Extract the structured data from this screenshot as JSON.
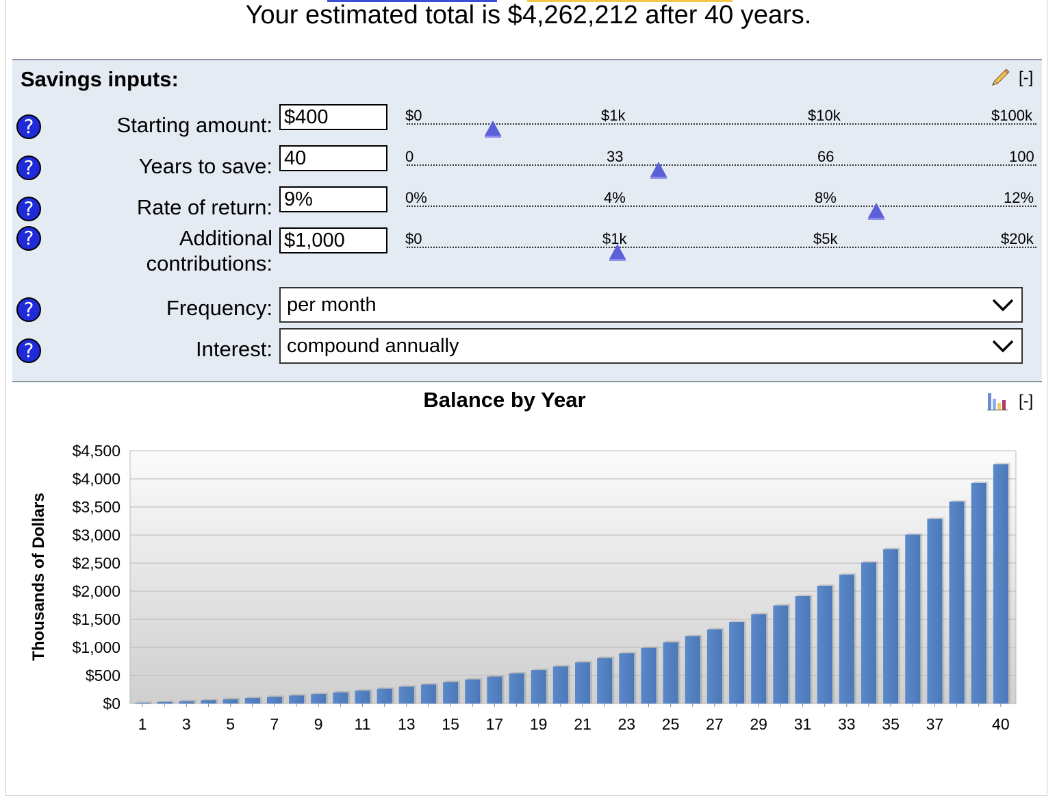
{
  "headline": "Your estimated total is $4,262,212 after 40 years.",
  "inputs_panel": {
    "title": "Savings inputs:",
    "collapse_label": "[-]",
    "fields": {
      "starting_amount": {
        "label": "Starting amount:",
        "value": "$400",
        "ticks": [
          "$0",
          "$1k",
          "$10k",
          "$100k"
        ],
        "slider_position": 0.137
      },
      "years": {
        "label": "Years to save:",
        "value": "40",
        "ticks": [
          "0",
          "33",
          "66",
          "100"
        ],
        "slider_position": 0.4
      },
      "rate": {
        "label": "Rate of return:",
        "value": "9%",
        "ticks": [
          "0%",
          "4%",
          "8%",
          "12%"
        ],
        "slider_position": 0.75
      },
      "contributions": {
        "label_line1": "Additional",
        "label_line2": "contributions:",
        "value": "$1,000",
        "ticks": [
          "$0",
          "$1k",
          "$5k",
          "$20k"
        ],
        "slider_position": 0.333
      },
      "frequency": {
        "label": "Frequency:",
        "value": "per month"
      },
      "interest": {
        "label": "Interest:",
        "value": "compound annually"
      }
    },
    "help_glyph": "?"
  },
  "chart_panel": {
    "collapse_label": "[-]"
  },
  "colors": {
    "accent": "#1f2bd9",
    "bar": "#4f7fbe",
    "slider_thumb": "#5b60d8",
    "panel_bg": "#e5ebf3"
  },
  "chart_data": {
    "type": "bar",
    "title": "Balance by Year",
    "ylabel": "Thousands of Dollars",
    "xlabel": "",
    "ylim": [
      0,
      4500
    ],
    "y_ticks": [
      "$0",
      "$500",
      "$1,000",
      "$1,500",
      "$2,000",
      "$2,500",
      "$3,000",
      "$3,500",
      "$4,000",
      "$4,500"
    ],
    "x_tick_labels": [
      "1",
      "3",
      "5",
      "7",
      "9",
      "11",
      "13",
      "15",
      "17",
      "19",
      "21",
      "23",
      "25",
      "27",
      "29",
      "31",
      "33",
      "35",
      "37",
      "40"
    ],
    "categories": [
      "1",
      "2",
      "3",
      "4",
      "5",
      "6",
      "7",
      "8",
      "9",
      "10",
      "11",
      "12",
      "13",
      "14",
      "15",
      "16",
      "17",
      "18",
      "19",
      "20",
      "21",
      "22",
      "23",
      "24",
      "25",
      "26",
      "27",
      "28",
      "29",
      "30",
      "31",
      "32",
      "33",
      "34",
      "35",
      "36",
      "37",
      "38",
      "39",
      "40"
    ],
    "values": [
      12,
      26,
      41,
      58,
      77,
      97,
      119,
      143,
      169,
      198,
      229,
      263,
      299,
      339,
      382,
      429,
      480,
      536,
      596,
      662,
      734,
      812,
      897,
      990,
      1091,
      1201,
      1320,
      1450,
      1592,
      1746,
      1914,
      2097,
      2296,
      2513,
      2750,
      3008,
      3289,
      3595,
      3929,
      4262
    ]
  }
}
